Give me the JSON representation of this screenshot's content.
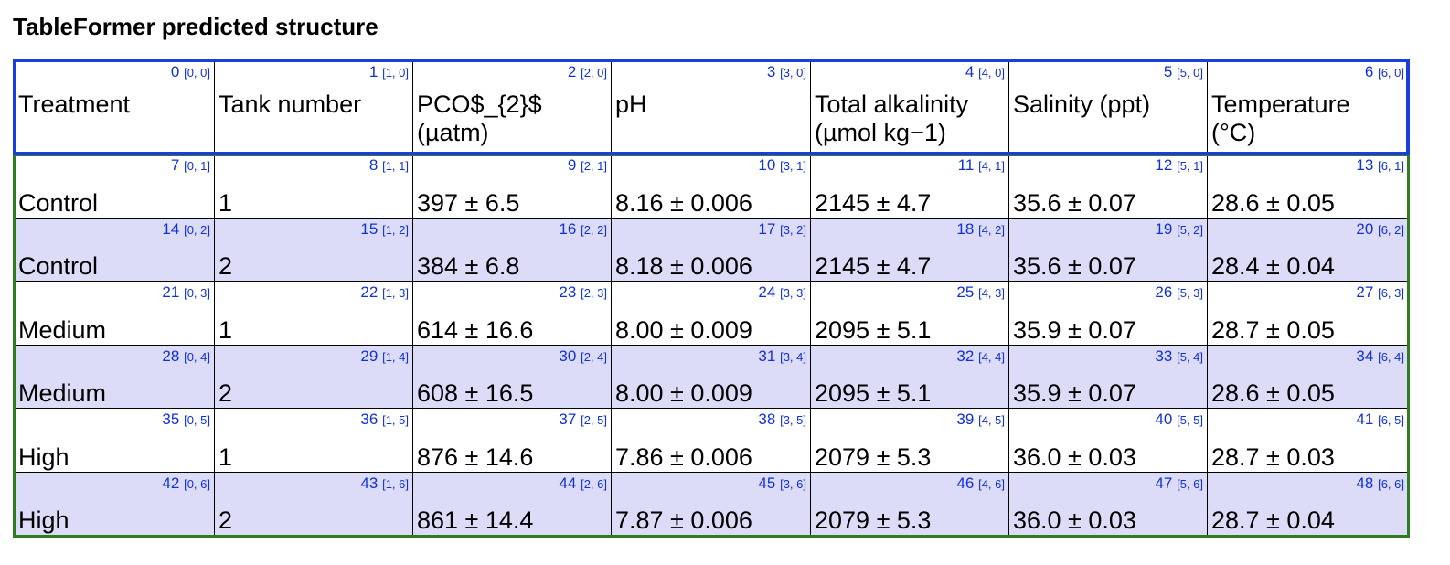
{
  "title": "TableFormer predicted structure",
  "table": {
    "header": [
      {
        "index": 0,
        "coords": "[0, 0]",
        "lines": [
          "Treatment"
        ]
      },
      {
        "index": 1,
        "coords": "[1, 0]",
        "lines": [
          "Tank number"
        ]
      },
      {
        "index": 2,
        "coords": "[2, 0]",
        "lines": [
          "PCO$_{2}$",
          "(µatm)"
        ]
      },
      {
        "index": 3,
        "coords": "[3, 0]",
        "lines": [
          "pH"
        ]
      },
      {
        "index": 4,
        "coords": "[4, 0]",
        "lines": [
          "Total alkalinity",
          "(µmol kg−1)"
        ]
      },
      {
        "index": 5,
        "coords": "[5, 0]",
        "lines": [
          "Salinity (ppt)"
        ]
      },
      {
        "index": 6,
        "coords": "[6, 0]",
        "lines": [
          "Temperature",
          "(°C)"
        ]
      }
    ],
    "rows": [
      [
        {
          "index": 7,
          "coords": "[0, 1]",
          "text": "Control"
        },
        {
          "index": 8,
          "coords": "[1, 1]",
          "text": "1"
        },
        {
          "index": 9,
          "coords": "[2, 1]",
          "text": "397 ± 6.5"
        },
        {
          "index": 10,
          "coords": "[3, 1]",
          "text": "8.16 ± 0.006"
        },
        {
          "index": 11,
          "coords": "[4, 1]",
          "text": "2145 ± 4.7"
        },
        {
          "index": 12,
          "coords": "[5, 1]",
          "text": "35.6 ± 0.07"
        },
        {
          "index": 13,
          "coords": "[6, 1]",
          "text": "28.6 ± 0.05"
        }
      ],
      [
        {
          "index": 14,
          "coords": "[0, 2]",
          "text": "Control"
        },
        {
          "index": 15,
          "coords": "[1, 2]",
          "text": "2"
        },
        {
          "index": 16,
          "coords": "[2, 2]",
          "text": "384 ± 6.8"
        },
        {
          "index": 17,
          "coords": "[3, 2]",
          "text": "8.18 ± 0.006"
        },
        {
          "index": 18,
          "coords": "[4, 2]",
          "text": "2145 ± 4.7"
        },
        {
          "index": 19,
          "coords": "[5, 2]",
          "text": "35.6 ± 0.07"
        },
        {
          "index": 20,
          "coords": "[6, 2]",
          "text": "28.4 ± 0.04"
        }
      ],
      [
        {
          "index": 21,
          "coords": "[0, 3]",
          "text": "Medium"
        },
        {
          "index": 22,
          "coords": "[1, 3]",
          "text": "1"
        },
        {
          "index": 23,
          "coords": "[2, 3]",
          "text": "614 ± 16.6"
        },
        {
          "index": 24,
          "coords": "[3, 3]",
          "text": "8.00 ± 0.009"
        },
        {
          "index": 25,
          "coords": "[4, 3]",
          "text": "2095 ± 5.1"
        },
        {
          "index": 26,
          "coords": "[5, 3]",
          "text": "35.9 ± 0.07"
        },
        {
          "index": 27,
          "coords": "[6, 3]",
          "text": "28.7 ± 0.05"
        }
      ],
      [
        {
          "index": 28,
          "coords": "[0, 4]",
          "text": "Medium"
        },
        {
          "index": 29,
          "coords": "[1, 4]",
          "text": "2"
        },
        {
          "index": 30,
          "coords": "[2, 4]",
          "text": "608 ± 16.5"
        },
        {
          "index": 31,
          "coords": "[3, 4]",
          "text": "8.00 ± 0.009"
        },
        {
          "index": 32,
          "coords": "[4, 4]",
          "text": "2095 ± 5.1"
        },
        {
          "index": 33,
          "coords": "[5, 4]",
          "text": "35.9 ± 0.07"
        },
        {
          "index": 34,
          "coords": "[6, 4]",
          "text": "28.6 ± 0.05"
        }
      ],
      [
        {
          "index": 35,
          "coords": "[0, 5]",
          "text": "High"
        },
        {
          "index": 36,
          "coords": "[1, 5]",
          "text": "1"
        },
        {
          "index": 37,
          "coords": "[2, 5]",
          "text": "876 ± 14.6"
        },
        {
          "index": 38,
          "coords": "[3, 5]",
          "text": "7.86 ± 0.006"
        },
        {
          "index": 39,
          "coords": "[4, 5]",
          "text": "2079 ± 5.3"
        },
        {
          "index": 40,
          "coords": "[5, 5]",
          "text": "36.0 ± 0.03"
        },
        {
          "index": 41,
          "coords": "[6, 5]",
          "text": "28.7 ± 0.03"
        }
      ],
      [
        {
          "index": 42,
          "coords": "[0, 6]",
          "text": "High"
        },
        {
          "index": 43,
          "coords": "[1, 6]",
          "text": "2"
        },
        {
          "index": 44,
          "coords": "[2, 6]",
          "text": "861 ± 14.4"
        },
        {
          "index": 45,
          "coords": "[3, 6]",
          "text": "7.87 ± 0.006"
        },
        {
          "index": 46,
          "coords": "[4, 6]",
          "text": "2079 ± 5.3"
        },
        {
          "index": 47,
          "coords": "[5, 6]",
          "text": "36.0 ± 0.03"
        },
        {
          "index": 48,
          "coords": "[6, 6]",
          "text": "28.7 ± 0.04"
        }
      ]
    ]
  }
}
